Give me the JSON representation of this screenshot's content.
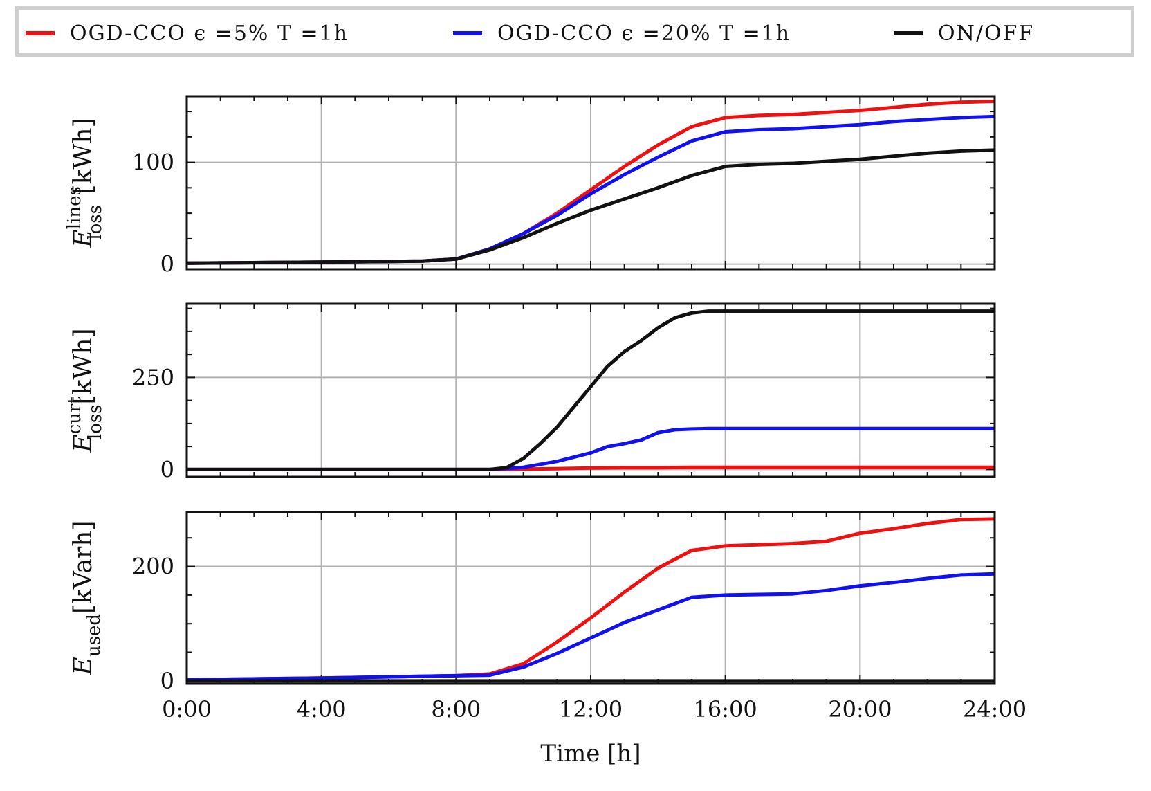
{
  "legend": {
    "entries": [
      {
        "label": "OGD-CCO ϵ =5% T =1h",
        "color": "#ee1111"
      },
      {
        "label": "OGD-CCO ϵ =20% T =1h",
        "color": "#1111ee"
      },
      {
        "label": "ON/OFF",
        "color": "#111111"
      }
    ]
  },
  "xaxis": {
    "label": "Time [h]",
    "range": [
      0,
      24
    ],
    "ticks": [
      0,
      4,
      8,
      12,
      16,
      20,
      24
    ],
    "tick_labels": [
      "0:00",
      "4:00",
      "8:00",
      "12:00",
      "16:00",
      "20:00",
      "24:00"
    ]
  },
  "chart_data": [
    {
      "type": "line",
      "ylabel": "E_loss^lines [kWh]",
      "ylabel_parts": {
        "main": "E",
        "sup": "lines",
        "sub": "loss",
        "unit": "[kWh]"
      },
      "ylim": [
        -5,
        165
      ],
      "yticks": [
        0,
        100
      ],
      "ytick_labels": [
        "0",
        "100"
      ],
      "grid": true,
      "series": [
        {
          "name": "OGD-CCO ϵ =5% T =1h",
          "color": "#ee1111",
          "x": [
            0,
            4,
            7,
            8,
            9,
            10,
            11,
            12,
            13,
            14,
            15,
            16,
            17,
            18,
            19,
            20,
            21,
            22,
            23,
            24
          ],
          "y": [
            1,
            2,
            3,
            5,
            15,
            30,
            50,
            73,
            96,
            117,
            135,
            144,
            146,
            147,
            149,
            151,
            154,
            157,
            159,
            160
          ]
        },
        {
          "name": "OGD-CCO ϵ =20% T =1h",
          "color": "#1111ee",
          "x": [
            0,
            4,
            7,
            8,
            9,
            10,
            11,
            12,
            13,
            14,
            15,
            16,
            17,
            18,
            19,
            20,
            21,
            22,
            23,
            24
          ],
          "y": [
            1,
            2,
            3,
            5,
            15,
            30,
            48,
            69,
            88,
            105,
            121,
            130,
            132,
            133,
            135,
            137,
            140,
            142,
            144,
            145
          ]
        },
        {
          "name": "ON/OFF",
          "color": "#111111",
          "x": [
            0,
            4,
            7,
            8,
            9,
            10,
            11,
            12,
            13,
            14,
            15,
            16,
            17,
            18,
            19,
            20,
            21,
            22,
            23,
            24
          ],
          "y": [
            1,
            2,
            3,
            5,
            14,
            26,
            40,
            53,
            64,
            75,
            87,
            96,
            98,
            99,
            101,
            103,
            106,
            109,
            111,
            112
          ]
        }
      ]
    },
    {
      "type": "line",
      "ylabel": "E_loss^curt [kWh]",
      "ylabel_parts": {
        "main": "E",
        "sup": "curt",
        "sub": "loss",
        "unit": "[kWh]"
      },
      "ylim": [
        -20,
        450
      ],
      "yticks": [
        0,
        250
      ],
      "ytick_labels": [
        "0",
        "250"
      ],
      "grid": true,
      "series": [
        {
          "name": "OGD-CCO ϵ =5% T =1h",
          "color": "#ee1111",
          "x": [
            0,
            9,
            10,
            11,
            12,
            13,
            14,
            15,
            16,
            24
          ],
          "y": [
            0,
            0,
            1,
            2,
            4,
            5,
            5,
            6,
            6,
            6
          ]
        },
        {
          "name": "OGD-CCO ϵ =20% T =1h",
          "color": "#1111ee",
          "x": [
            0,
            9,
            10,
            11,
            12,
            12.5,
            13,
            13.5,
            14,
            14.5,
            15,
            15.5,
            16,
            24
          ],
          "y": [
            0,
            0,
            6,
            22,
            45,
            62,
            70,
            80,
            100,
            108,
            110,
            111,
            111,
            111
          ]
        },
        {
          "name": "ON/OFF",
          "color": "#111111",
          "x": [
            0,
            9,
            9.5,
            10,
            10.5,
            11,
            11.5,
            12,
            12.5,
            13,
            13.5,
            14,
            14.5,
            15,
            15.5,
            16,
            24
          ],
          "y": [
            0,
            0,
            5,
            30,
            70,
            115,
            170,
            225,
            280,
            320,
            350,
            385,
            412,
            425,
            430,
            430,
            430
          ]
        }
      ]
    },
    {
      "type": "line",
      "ylabel": "E_used [kVarh]",
      "ylabel_parts": {
        "main": "E",
        "sup": "",
        "sub": "used",
        "unit": "[kVarh]"
      },
      "ylim": [
        -5,
        295
      ],
      "yticks": [
        0,
        200
      ],
      "ytick_labels": [
        "0",
        "200"
      ],
      "grid": true,
      "series": [
        {
          "name": "OGD-CCO ϵ =5% T =1h",
          "color": "#ee1111",
          "x": [
            0,
            4,
            8,
            9,
            10,
            11,
            12,
            13,
            14,
            15,
            16,
            17,
            18,
            19,
            20,
            21,
            22,
            23,
            24
          ],
          "y": [
            2,
            5,
            9,
            12,
            30,
            68,
            110,
            155,
            197,
            228,
            236,
            238,
            240,
            244,
            258,
            266,
            275,
            282,
            283
          ]
        },
        {
          "name": "OGD-CCO ϵ =20% T =1h",
          "color": "#1111ee",
          "x": [
            0,
            4,
            8,
            9,
            10,
            11,
            12,
            13,
            14,
            15,
            16,
            17,
            18,
            19,
            20,
            21,
            22,
            23,
            24
          ],
          "y": [
            2,
            5,
            9,
            10,
            24,
            48,
            75,
            102,
            124,
            146,
            150,
            151,
            152,
            158,
            166,
            172,
            179,
            185,
            187
          ]
        },
        {
          "name": "ON/OFF",
          "color": "#111111",
          "x": [
            0,
            24
          ],
          "y": [
            0,
            0
          ]
        }
      ]
    }
  ]
}
